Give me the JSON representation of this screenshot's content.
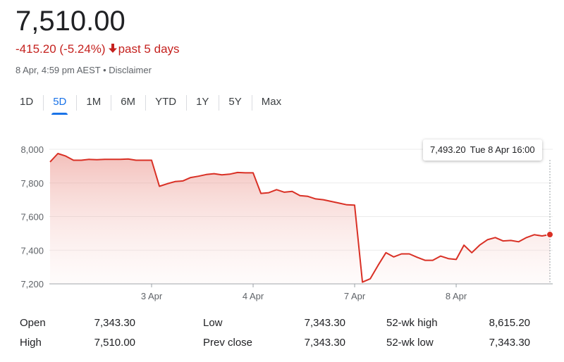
{
  "quote": {
    "price": "7,510.00",
    "change": "-415.20 (-5.24%)",
    "direction_icon": "arrow-down-icon",
    "period": "past 5 days",
    "timestamp": "8 Apr, 4:59 pm AEST",
    "separator": " • ",
    "disclaimer": "Disclaimer"
  },
  "tabs": [
    {
      "label": "1D",
      "active": false
    },
    {
      "label": "5D",
      "active": true
    },
    {
      "label": "1M",
      "active": false
    },
    {
      "label": "6M",
      "active": false
    },
    {
      "label": "YTD",
      "active": false
    },
    {
      "label": "1Y",
      "active": false
    },
    {
      "label": "5Y",
      "active": false
    },
    {
      "label": "Max",
      "active": false
    }
  ],
  "tooltip": {
    "value": "7,493.20",
    "date": "Tue 8 Apr 16:00"
  },
  "colors": {
    "line": "#d93025",
    "negative_text": "#c5221f",
    "active_tab": "#1a73e8"
  },
  "chart_data": {
    "type": "area",
    "y_ticks": [
      "8,000",
      "7,800",
      "7,600",
      "7,400",
      "7,200"
    ],
    "y_tick_values": [
      8000,
      7800,
      7600,
      7400,
      7200
    ],
    "ylim": [
      7200,
      8000
    ],
    "x_labels": [
      "3 Apr",
      "4 Apr",
      "7 Apr",
      "8 Apr"
    ],
    "x_label_index": [
      13,
      26,
      39,
      52
    ],
    "grid": true,
    "series": [
      {
        "values": [
          7925,
          7975,
          7960,
          7935,
          7935,
          7940,
          7938,
          7940,
          7940,
          7940,
          7942,
          7935,
          7935,
          7935,
          7780,
          7795,
          7808,
          7812,
          7832,
          7840,
          7850,
          7855,
          7848,
          7852,
          7862,
          7860,
          7860,
          7738,
          7742,
          7760,
          7745,
          7750,
          7725,
          7720,
          7705,
          7700,
          7690,
          7680,
          7670,
          7668,
          7210,
          7230,
          7310,
          7385,
          7360,
          7378,
          7378,
          7358,
          7340,
          7340,
          7365,
          7350,
          7345,
          7430,
          7385,
          7430,
          7462,
          7475,
          7455,
          7458,
          7450,
          7475,
          7492,
          7485,
          7493
        ]
      }
    ]
  },
  "stats": [
    {
      "label": "Open",
      "value": "7,343.30"
    },
    {
      "label": "High",
      "value": "7,510.00"
    },
    {
      "label": "Low",
      "value": "7,343.30"
    },
    {
      "label": "Prev close",
      "value": "7,343.30"
    },
    {
      "label": "52-wk high",
      "value": "8,615.20"
    },
    {
      "label": "52-wk low",
      "value": "7,343.30"
    }
  ]
}
